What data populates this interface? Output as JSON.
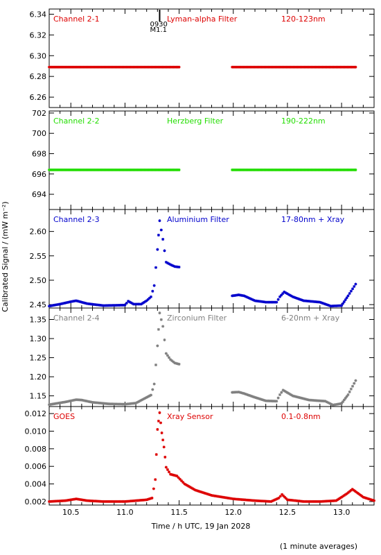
{
  "chart_data": {
    "type": "scatter",
    "xlabel": "Time / h UTC, 19 Jan 2028",
    "ylabel": "Calibrated Signal / (mW m⁻²)",
    "footnote": "(1 minute averages)",
    "xlim": [
      10.3,
      13.3
    ],
    "xticks": [
      "10.5",
      "11.0",
      "11.5",
      "12.0",
      "12.5",
      "13.0"
    ],
    "xtick_values": [
      10.5,
      11.0,
      11.5,
      12.0,
      12.5,
      13.0
    ],
    "flare_marker": {
      "x": 11.32,
      "lines": [
        "0930",
        "M1.1"
      ]
    },
    "panels": [
      {
        "channel": "Channel 2-1",
        "filter": "Lyman-alpha Filter",
        "band": "120-123nm",
        "color": "#dd0000",
        "ylim": [
          6.25,
          6.345
        ],
        "yticks": [
          "6.26",
          "6.28",
          "6.30",
          "6.32",
          "6.34"
        ],
        "ytick_values": [
          6.26,
          6.28,
          6.3,
          6.32,
          6.34
        ],
        "segments": [
          {
            "x": [
              10.3,
              11.5
            ],
            "y": [
              6.289,
              6.289
            ]
          },
          {
            "x": [
              11.99,
              13.13
            ],
            "y": [
              6.289,
              6.289
            ]
          }
        ]
      },
      {
        "channel": "Channel 2-2",
        "filter": "Herzberg Filter",
        "band": "190-222nm",
        "color": "#22dd00",
        "ylim": [
          692.5,
          702.2
        ],
        "yticks": [
          "694",
          "696",
          "698",
          "700",
          "702"
        ],
        "ytick_values": [
          694,
          696,
          698,
          700,
          702
        ],
        "segments": [
          {
            "x": [
              10.3,
              11.5
            ],
            "y": [
              696.4,
              696.4
            ]
          },
          {
            "x": [
              11.99,
              13.13
            ],
            "y": [
              696.4,
              696.4
            ]
          }
        ]
      },
      {
        "channel": "Channel 2-3",
        "filter": "Aluminium Filter",
        "band": "17-80nm + Xray",
        "color": "#0000cc",
        "ylim": [
          2.443,
          2.645
        ],
        "yticks": [
          "2.45",
          "2.50",
          "2.55",
          "2.60"
        ],
        "ytick_values": [
          2.45,
          2.5,
          2.55,
          2.6
        ],
        "segments": [
          {
            "x": [
              10.3,
              10.4,
              10.5,
              10.55,
              10.65,
              10.8,
              11.0,
              11.03,
              11.08,
              11.15,
              11.2,
              11.24,
              11.27,
              11.3,
              11.32,
              11.35,
              11.38,
              11.42,
              11.46,
              11.5
            ],
            "y": [
              2.447,
              2.451,
              2.456,
              2.458,
              2.452,
              2.448,
              2.449,
              2.457,
              2.451,
              2.451,
              2.458,
              2.466,
              2.489,
              2.563,
              2.622,
              2.584,
              2.537,
              2.532,
              2.528,
              2.527
            ]
          },
          {
            "x": [
              11.99,
              12.05,
              12.1,
              12.2,
              12.3,
              12.4,
              12.43,
              12.47,
              12.55,
              12.65,
              12.8,
              12.9,
              13.0,
              13.06,
              13.13
            ],
            "y": [
              2.468,
              2.47,
              2.468,
              2.458,
              2.455,
              2.455,
              2.466,
              2.476,
              2.466,
              2.458,
              2.455,
              2.447,
              2.448,
              2.468,
              2.492
            ]
          }
        ]
      },
      {
        "channel": "Channel 2-4",
        "filter": "Zirconium Filter",
        "band": "6-20nm + Xray",
        "color": "#808080",
        "ylim": [
          1.122,
          1.38
        ],
        "yticks": [
          "1.15",
          "1.20",
          "1.25",
          "1.30",
          "1.35"
        ],
        "ytick_values": [
          1.15,
          1.2,
          1.25,
          1.3,
          1.35
        ],
        "segments": [
          {
            "x": [
              10.3,
              10.45,
              10.55,
              10.6,
              10.7,
              10.85,
              11.0,
              11.1,
              11.18,
              11.24,
              11.27,
              11.3,
              11.32,
              11.35,
              11.38,
              11.42,
              11.46,
              11.5
            ],
            "y": [
              1.127,
              1.134,
              1.14,
              1.139,
              1.133,
              1.129,
              1.128,
              1.131,
              1.143,
              1.152,
              1.181,
              1.281,
              1.367,
              1.332,
              1.261,
              1.245,
              1.236,
              1.233
            ]
          },
          {
            "x": [
              11.99,
              12.05,
              12.1,
              12.2,
              12.3,
              12.4,
              12.43,
              12.46,
              12.55,
              12.7,
              12.85,
              12.92,
              13.0,
              13.06,
              13.13
            ],
            "y": [
              1.159,
              1.16,
              1.156,
              1.146,
              1.137,
              1.136,
              1.153,
              1.165,
              1.15,
              1.139,
              1.136,
              1.126,
              1.13,
              1.153,
              1.19
            ]
          }
        ]
      },
      {
        "channel": "GOES",
        "filter": "Xray Sensor",
        "band": "0.1-0.8nm",
        "color": "#dd0000",
        "ylim": [
          0.0016,
          0.0128
        ],
        "yticks": [
          "0.002",
          "0.004",
          "0.006",
          "0.008",
          "0.010",
          "0.012"
        ],
        "ytick_values": [
          0.002,
          0.004,
          0.006,
          0.008,
          0.01,
          0.012
        ],
        "segments": [
          {
            "x": [
              10.3,
              10.45,
              10.55,
              10.65,
              10.8,
              11.0,
              11.1,
              11.2,
              11.25,
              11.28,
              11.3,
              11.32,
              11.34,
              11.36,
              11.38,
              11.42,
              11.48,
              11.55,
              11.65,
              11.8,
              12.0,
              12.2,
              12.35,
              12.42,
              12.45,
              12.5,
              12.65,
              12.8,
              12.95,
              13.05,
              13.1,
              13.2,
              13.3
            ],
            "y": [
              0.002,
              0.0021,
              0.0023,
              0.0021,
              0.002,
              0.002,
              0.0021,
              0.0022,
              0.0024,
              0.0045,
              0.0102,
              0.0121,
              0.0098,
              0.0082,
              0.0059,
              0.0051,
              0.0049,
              0.004,
              0.0033,
              0.0027,
              0.0023,
              0.0021,
              0.002,
              0.0024,
              0.0028,
              0.0022,
              0.002,
              0.002,
              0.0021,
              0.0029,
              0.0034,
              0.0025,
              0.0021
            ]
          }
        ]
      }
    ]
  }
}
